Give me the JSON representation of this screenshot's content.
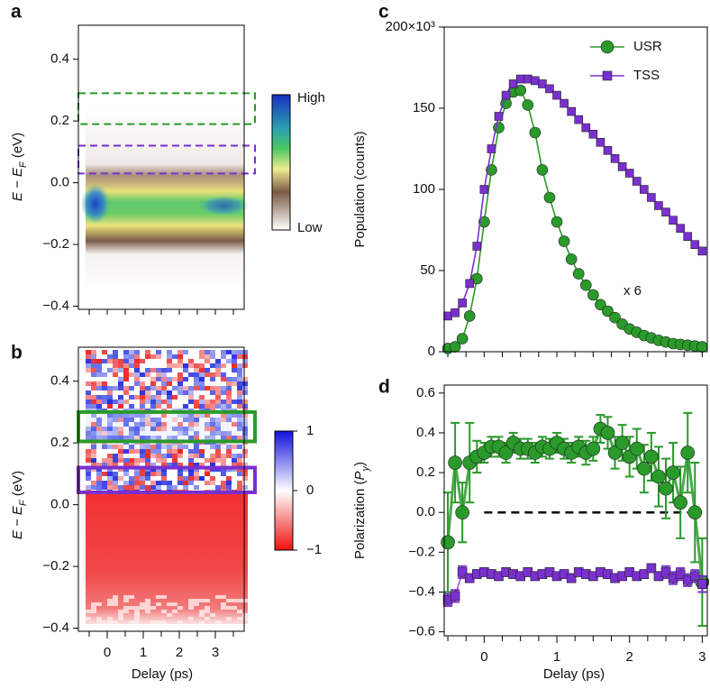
{
  "chart_data": [
    {
      "type": "heatmap",
      "panel": "a",
      "ylabel": [
        "E − E",
        "F",
        " (eV)"
      ],
      "xlim": [
        -0.8,
        3.8
      ],
      "ylim": [
        -0.41,
        0.51
      ],
      "yticks": [
        {
          "value": -0.4,
          "label": "−0.4"
        },
        {
          "value": -0.2,
          "label": "−0.2"
        },
        {
          "value": 0,
          "label": "0.0"
        },
        0.2,
        0.4
      ],
      "xticks_minor": [
        -0.5,
        0,
        0.5,
        1,
        1.5,
        2,
        2.5,
        3,
        3.5
      ],
      "colorbar_labels": [
        "High",
        "Low"
      ],
      "boxes": [
        {
          "ylim": [
            0.19,
            0.29
          ],
          "color": "#2a9a2a",
          "style": "dashed"
        },
        {
          "ylim": [
            0.03,
            0.12
          ],
          "color": "#7a2fcf",
          "style": "dashed"
        }
      ]
    },
    {
      "type": "heatmap",
      "panel": "b",
      "ylabel": [
        "E − E",
        "F",
        " (eV)"
      ],
      "xlabel": "Delay (ps)",
      "xlim": [
        -0.8,
        3.8
      ],
      "ylim": [
        -0.41,
        0.51
      ],
      "yticks": [
        {
          "value": -0.4,
          "label": "−0.4"
        },
        {
          "value": -0.2,
          "label": "−0.2"
        },
        {
          "value": 0,
          "label": "0.0"
        },
        0.2,
        0.4
      ],
      "xticks": [
        0,
        1,
        2,
        3
      ],
      "xticks_minor": [
        -0.5,
        0.5,
        1.5,
        2.5,
        3.5
      ],
      "clim": [
        -1,
        1
      ],
      "colorbar_ticks": [
        1,
        0,
        {
          "value": -1,
          "label": "−1"
        }
      ],
      "boxes": [
        {
          "ylim": [
            0.205,
            0.3
          ],
          "color": "#2a9a2a",
          "style": "solid"
        },
        {
          "ylim": [
            0.04,
            0.12
          ],
          "color": "#7a2fcf",
          "style": "solid"
        }
      ]
    },
    {
      "type": "line",
      "panel": "c",
      "ylabel": "Population (counts)",
      "xlim": [
        -0.55,
        3.07
      ],
      "ylim": [
        0,
        200
      ],
      "yticks": [
        0,
        50,
        100,
        150,
        {
          "value": 200,
          "label": "200×10³"
        }
      ],
      "xticks_minor": [
        -0.5,
        -0.25,
        0,
        0.25,
        0.5,
        0.75,
        1,
        1.25,
        1.5,
        1.75,
        2,
        2.25,
        2.5,
        2.75,
        3
      ],
      "legend": "upper right",
      "annotation": "x 6",
      "x": [
        -0.5,
        -0.4,
        -0.3,
        -0.2,
        -0.1,
        0,
        0.1,
        0.2,
        0.3,
        0.4,
        0.5,
        0.6,
        0.7,
        0.8,
        0.9,
        1,
        1.1,
        1.2,
        1.3,
        1.4,
        1.5,
        1.6,
        1.7,
        1.8,
        1.9,
        2,
        2.1,
        2.2,
        2.3,
        2.4,
        2.5,
        2.6,
        2.7,
        2.8,
        2.9,
        3
      ],
      "series": [
        {
          "name": "USR",
          "color": "#2a9a2a",
          "marker": "circle",
          "values": [
            2,
            3,
            8,
            22,
            45,
            80,
            112,
            138,
            153,
            160,
            161,
            152,
            135,
            112,
            95,
            80,
            68,
            57,
            48,
            41,
            35,
            29,
            25,
            21,
            17,
            14,
            12,
            10,
            8.5,
            7,
            6,
            5,
            4.5,
            4,
            3.5,
            3
          ]
        },
        {
          "name": "TSS",
          "color": "#7a2fcf",
          "marker": "square",
          "values": [
            22,
            24,
            30,
            42,
            65,
            100,
            125,
            145,
            158,
            165,
            168,
            168,
            167,
            165,
            162,
            158,
            153,
            148,
            143,
            138,
            134,
            129,
            124,
            119,
            114,
            110,
            105,
            100,
            95,
            90,
            86,
            81,
            76,
            71,
            66,
            62
          ]
        }
      ]
    },
    {
      "type": "scatter",
      "panel": "d",
      "ylabel": [
        "Polarization (",
        "P",
        "y",
        ")"
      ],
      "xlabel": "Delay (ps)",
      "xlim": [
        -0.55,
        3.07
      ],
      "ylim": [
        -0.62,
        0.64
      ],
      "yticks": [
        0.6,
        0.4,
        0.2,
        {
          "value": 0,
          "label": "0.0"
        },
        {
          "value": -0.2,
          "label": "−0.2"
        },
        {
          "value": -0.4,
          "label": "−0.4"
        },
        {
          "value": -0.6,
          "label": "−0.6"
        }
      ],
      "xticks": [
        0,
        1,
        2,
        3
      ],
      "xticks_minor": [
        -0.5,
        -0.25,
        0.25,
        0.5,
        0.75,
        1.25,
        1.5,
        1.75,
        2.25,
        2.5,
        2.75
      ],
      "hline": 0,
      "x": [
        -0.5,
        -0.4,
        -0.3,
        -0.2,
        -0.1,
        0,
        0.1,
        0.2,
        0.3,
        0.4,
        0.5,
        0.6,
        0.7,
        0.8,
        0.9,
        1,
        1.1,
        1.2,
        1.3,
        1.4,
        1.5,
        1.6,
        1.7,
        1.8,
        1.9,
        2,
        2.1,
        2.2,
        2.3,
        2.4,
        2.5,
        2.6,
        2.7,
        2.8,
        2.9,
        3
      ],
      "series": [
        {
          "name": "USR",
          "color": "#2a9a2a",
          "marker": "circle",
          "values": [
            -0.15,
            0.25,
            0,
            0.25,
            0.28,
            0.3,
            0.33,
            0.33,
            0.3,
            0.35,
            0.32,
            0.32,
            0.3,
            0.33,
            0.32,
            0.35,
            0.32,
            0.3,
            0.33,
            0.3,
            0.32,
            0.42,
            0.4,
            0.3,
            0.35,
            0.28,
            0.32,
            0.22,
            0.28,
            0.18,
            0.12,
            0.2,
            0.05,
            0.3,
            0,
            -0.35
          ],
          "errors": [
            0.25,
            0.2,
            0.15,
            0.2,
            0.08,
            0.05,
            0.05,
            0.05,
            0.05,
            0.05,
            0.05,
            0.05,
            0.05,
            0.05,
            0.05,
            0.05,
            0.05,
            0.05,
            0.05,
            0.06,
            0.06,
            0.07,
            0.08,
            0.08,
            0.09,
            0.1,
            0.1,
            0.12,
            0.12,
            0.15,
            0.15,
            0.15,
            0.18,
            0.2,
            0.25,
            0.22
          ]
        },
        {
          "name": "TSS",
          "color": "#7a2fcf",
          "marker": "square",
          "values": [
            -0.44,
            -0.42,
            -0.3,
            -0.33,
            -0.31,
            -0.3,
            -0.31,
            -0.32,
            -0.3,
            -0.31,
            -0.32,
            -0.3,
            -0.32,
            -0.31,
            -0.3,
            -0.32,
            -0.31,
            -0.33,
            -0.3,
            -0.31,
            -0.32,
            -0.3,
            -0.31,
            -0.33,
            -0.32,
            -0.3,
            -0.32,
            -0.31,
            -0.28,
            -0.32,
            -0.3,
            -0.33,
            -0.31,
            -0.34,
            -0.32,
            -0.36
          ],
          "errors": [
            0.03,
            0.03,
            0.03,
            0.02,
            0.02,
            0.02,
            0.02,
            0.02,
            0.02,
            0.02,
            0.02,
            0.02,
            0.02,
            0.02,
            0.02,
            0.02,
            0.02,
            0.02,
            0.02,
            0.02,
            0.02,
            0.02,
            0.02,
            0.02,
            0.02,
            0.02,
            0.02,
            0.02,
            0.02,
            0.02,
            0.03,
            0.03,
            0.03,
            0.03,
            0.03,
            0.04
          ]
        }
      ]
    }
  ]
}
